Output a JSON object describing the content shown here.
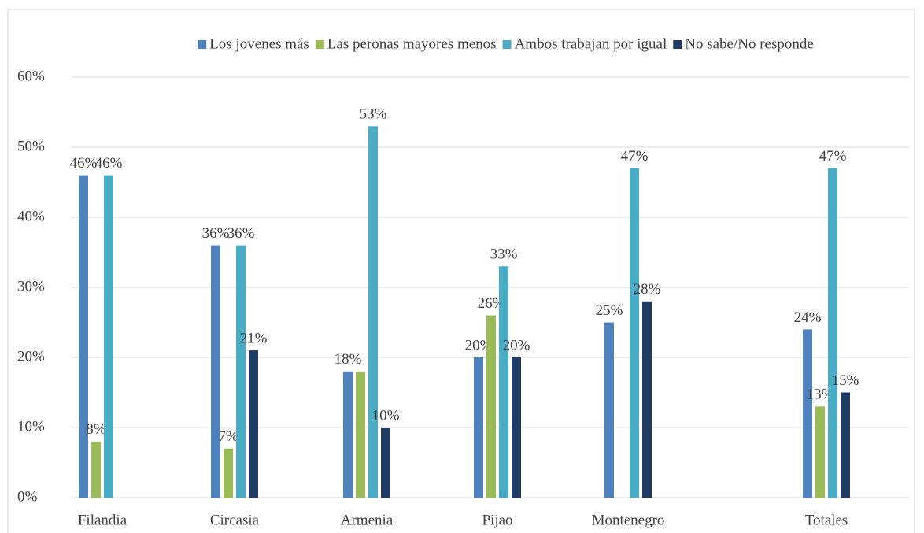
{
  "chart_data": {
    "type": "bar",
    "categories": [
      "Filandia",
      "Circasia",
      "Armenia",
      "Pijao",
      "Montenegro",
      "Totales"
    ],
    "series": [
      {
        "name": "Los jovenes más",
        "color": "#4f81bd",
        "values": [
          46,
          36,
          18,
          20,
          25,
          24
        ],
        "value_labels": [
          "46%",
          "36%",
          "18%",
          "20%",
          "25%",
          "24%"
        ]
      },
      {
        "name": "Las peronas mayores menos",
        "color": "#9bbb59",
        "values": [
          8,
          7,
          18,
          26,
          null,
          13
        ],
        "value_labels": [
          "8%",
          "7%",
          null,
          "26%",
          null,
          "13%"
        ]
      },
      {
        "name": "Ambos trabajan por igual",
        "color": "#4bacc6",
        "values": [
          46,
          36,
          53,
          33,
          47,
          47
        ],
        "value_labels": [
          "46%",
          "36%",
          "53%",
          "33%",
          "47%",
          "47%"
        ]
      },
      {
        "name": "No sabe/No responde",
        "color": "#1f3b64",
        "values": [
          null,
          21,
          10,
          20,
          28,
          15
        ],
        "value_labels": [
          null,
          "21%",
          "10%",
          "20%",
          "28%",
          "15%"
        ]
      }
    ],
    "ylim": [
      0,
      60
    ],
    "yticks": [
      {
        "value": 0,
        "label": "0%"
      },
      {
        "value": 10,
        "label": "10%"
      },
      {
        "value": 20,
        "label": "20%"
      },
      {
        "value": 30,
        "label": "30%"
      },
      {
        "value": 40,
        "label": "40%"
      },
      {
        "value": 50,
        "label": "50%"
      },
      {
        "value": 60,
        "label": "60%"
      }
    ],
    "grid": true,
    "legend": "top"
  }
}
